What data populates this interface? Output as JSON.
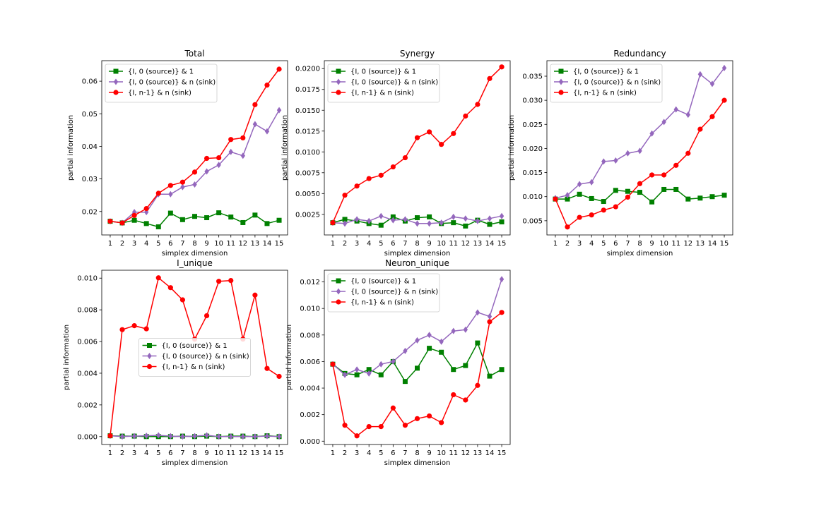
{
  "figure": {
    "series_styles": [
      {
        "color": "#008000",
        "marker": "square"
      },
      {
        "color": "#9467bd",
        "marker": "diamond"
      },
      {
        "color": "#ff0000",
        "marker": "circle"
      }
    ]
  },
  "chart_data": [
    {
      "type": "line",
      "title": "Total",
      "xlabel": "simplex dimension",
      "ylabel": "partial information",
      "x": [
        1,
        2,
        3,
        4,
        5,
        6,
        7,
        8,
        9,
        10,
        11,
        12,
        13,
        14,
        15
      ],
      "xlim": [
        0.3,
        15.7
      ],
      "ylim": [
        0.0128,
        0.0663
      ],
      "yticks": [
        0.02,
        0.03,
        0.04,
        0.05,
        0.06
      ],
      "ytick_labels": [
        "0.02",
        "0.03",
        "0.04",
        "0.05",
        "0.06"
      ],
      "legend_position": "upper-left",
      "grid": false,
      "series": [
        {
          "name": "{I, 0 (source)} & 1",
          "values": [
            0.017,
            0.0165,
            0.0173,
            0.0163,
            0.0153,
            0.0195,
            0.0175,
            0.0185,
            0.0181,
            0.0196,
            0.0183,
            0.0166,
            0.0189,
            0.0163,
            0.0173
          ]
        },
        {
          "name": "{I, 0 (source)} & n (sink)",
          "values": [
            0.017,
            0.0165,
            0.0198,
            0.0198,
            0.0253,
            0.0253,
            0.0275,
            0.0283,
            0.0323,
            0.0343,
            0.0383,
            0.0371,
            0.0468,
            0.0446,
            0.0511
          ]
        },
        {
          "name": "{I, n-1} & n (sink)",
          "values": [
            0.017,
            0.0165,
            0.0188,
            0.0209,
            0.0256,
            0.028,
            0.029,
            0.0321,
            0.0363,
            0.0365,
            0.0421,
            0.0426,
            0.0528,
            0.0588,
            0.0637
          ]
        }
      ]
    },
    {
      "type": "line",
      "title": "Synergy",
      "xlabel": "simplex dimension",
      "ylabel": "partial information",
      "x": [
        1,
        2,
        3,
        4,
        5,
        6,
        7,
        8,
        9,
        10,
        11,
        12,
        13,
        14,
        15
      ],
      "xlim": [
        0.3,
        15.7
      ],
      "ylim": [
        3e-05,
        0.02095
      ],
      "yticks": [
        0.0025,
        0.005,
        0.0075,
        0.01,
        0.0125,
        0.015,
        0.0175,
        0.02
      ],
      "ytick_labels": [
        "0.0025",
        "0.0050",
        "0.0075",
        "0.0100",
        "0.0125",
        "0.0150",
        "0.0175",
        "0.0200"
      ],
      "legend_position": "upper-left",
      "grid": false,
      "series": [
        {
          "name": "{I, 0 (source)} & 1",
          "values": [
            0.0015,
            0.0019,
            0.0017,
            0.0014,
            0.0012,
            0.0022,
            0.0017,
            0.0021,
            0.0022,
            0.0014,
            0.0015,
            0.0011,
            0.0018,
            0.0013,
            0.0016
          ]
        },
        {
          "name": "{I, 0 (source)} & n (sink)",
          "values": [
            0.0015,
            0.0014,
            0.0019,
            0.0017,
            0.0023,
            0.0018,
            0.0019,
            0.0014,
            0.0014,
            0.0015,
            0.0022,
            0.002,
            0.0017,
            0.002,
            0.0023
          ]
        },
        {
          "name": "{I, n-1} & n (sink)",
          "values": [
            0.0015,
            0.0048,
            0.0059,
            0.0068,
            0.0072,
            0.0082,
            0.0093,
            0.0117,
            0.0124,
            0.0109,
            0.0122,
            0.0143,
            0.0157,
            0.0188,
            0.0202
          ]
        }
      ]
    },
    {
      "type": "line",
      "title": "Redundancy",
      "xlabel": "simplex dimension",
      "ylabel": "partial information",
      "x": [
        1,
        2,
        3,
        4,
        5,
        6,
        7,
        8,
        9,
        10,
        11,
        12,
        13,
        14,
        15
      ],
      "xlim": [
        0.3,
        15.7
      ],
      "ylim": [
        0.00205,
        0.03822
      ],
      "yticks": [
        0.005,
        0.01,
        0.015,
        0.02,
        0.025,
        0.03,
        0.035
      ],
      "ytick_labels": [
        "0.005",
        "0.010",
        "0.015",
        "0.020",
        "0.025",
        "0.030",
        "0.035"
      ],
      "legend_position": "upper-left",
      "grid": false,
      "series": [
        {
          "name": "{I, 0 (source)} & 1",
          "values": [
            0.0095,
            0.0095,
            0.0105,
            0.0096,
            0.009,
            0.0113,
            0.0111,
            0.0109,
            0.0089,
            0.0115,
            0.0115,
            0.0095,
            0.0097,
            0.01,
            0.0103
          ]
        },
        {
          "name": "{I, 0 (source)} & n (sink)",
          "values": [
            0.0097,
            0.0103,
            0.0126,
            0.013,
            0.0173,
            0.0175,
            0.019,
            0.0195,
            0.0231,
            0.0255,
            0.0281,
            0.027,
            0.0354,
            0.0334,
            0.0367
          ]
        },
        {
          "name": "{I, n-1} & n (sink)",
          "values": [
            0.0095,
            0.0037,
            0.0057,
            0.0062,
            0.0072,
            0.0079,
            0.0099,
            0.0127,
            0.0145,
            0.0145,
            0.0165,
            0.019,
            0.024,
            0.0266,
            0.03
          ]
        }
      ]
    },
    {
      "type": "line",
      "title": "I_unique",
      "xlabel": "simplex dimension",
      "ylabel": "partial information",
      "x": [
        1,
        2,
        3,
        4,
        5,
        6,
        7,
        8,
        9,
        10,
        11,
        12,
        13,
        14,
        15
      ],
      "xlim": [
        0.3,
        15.7
      ],
      "ylim": [
        -0.0005,
        0.0105
      ],
      "yticks": [
        0.0,
        0.002,
        0.004,
        0.006,
        0.008,
        0.01
      ],
      "ytick_labels": [
        "0.000",
        "0.002",
        "0.004",
        "0.006",
        "0.008",
        "0.010"
      ],
      "legend_position": "center",
      "grid": false,
      "series": [
        {
          "name": "{I, 0 (source)} & 1",
          "values": [
            5e-05,
            3e-05,
            3e-05,
            0.0,
            0.0,
            0.0,
            3e-05,
            0.0,
            3e-05,
            0.0,
            3e-05,
            3e-05,
            0.0,
            5e-05,
            0.0
          ]
        },
        {
          "name": "{I, 0 (source)} & n (sink)",
          "values": [
            5e-05,
            0.0,
            3e-05,
            5e-05,
            8e-05,
            3e-05,
            0.0,
            3e-05,
            8e-05,
            0.0,
            0.0,
            0.0,
            0.0,
            3e-05,
            0.0
          ]
        },
        {
          "name": "{I, n-1} & n (sink)",
          "values": [
            5e-05,
            0.00675,
            0.007,
            0.0068,
            0.01002,
            0.0094,
            0.00863,
            0.00615,
            0.00763,
            0.0098,
            0.00985,
            0.00615,
            0.00893,
            0.0043,
            0.0038
          ]
        }
      ]
    },
    {
      "type": "line",
      "title": "Neuron_unique",
      "xlabel": "simplex dimension",
      "ylabel": "partial information",
      "x": [
        1,
        2,
        3,
        4,
        5,
        6,
        7,
        8,
        9,
        10,
        11,
        12,
        13,
        14,
        15
      ],
      "xlim": [
        0.3,
        15.7
      ],
      "ylim": [
        -0.00025,
        0.01288
      ],
      "yticks": [
        0.0,
        0.002,
        0.004,
        0.006,
        0.008,
        0.01,
        0.012
      ],
      "ytick_labels": [
        "0.000",
        "0.002",
        "0.004",
        "0.006",
        "0.008",
        "0.010",
        "0.012"
      ],
      "legend_position": "upper-left",
      "grid": false,
      "series": [
        {
          "name": "{I, 0 (source)} & 1",
          "values": [
            0.0058,
            0.0051,
            0.005,
            0.0054,
            0.005,
            0.006,
            0.0045,
            0.0055,
            0.007,
            0.0067,
            0.0054,
            0.0057,
            0.0074,
            0.0049,
            0.0054
          ]
        },
        {
          "name": "{I, 0 (source)} & n (sink)",
          "values": [
            0.0058,
            0.005,
            0.0054,
            0.0051,
            0.0058,
            0.006,
            0.0068,
            0.0076,
            0.008,
            0.0075,
            0.0083,
            0.0084,
            0.0097,
            0.0094,
            0.0122
          ]
        },
        {
          "name": "{I, n-1} & n (sink)",
          "values": [
            0.0058,
            0.0012,
            0.0004,
            0.0011,
            0.0011,
            0.0025,
            0.0012,
            0.0017,
            0.0019,
            0.0014,
            0.0035,
            0.0031,
            0.0042,
            0.009,
            0.0097
          ]
        }
      ]
    }
  ]
}
